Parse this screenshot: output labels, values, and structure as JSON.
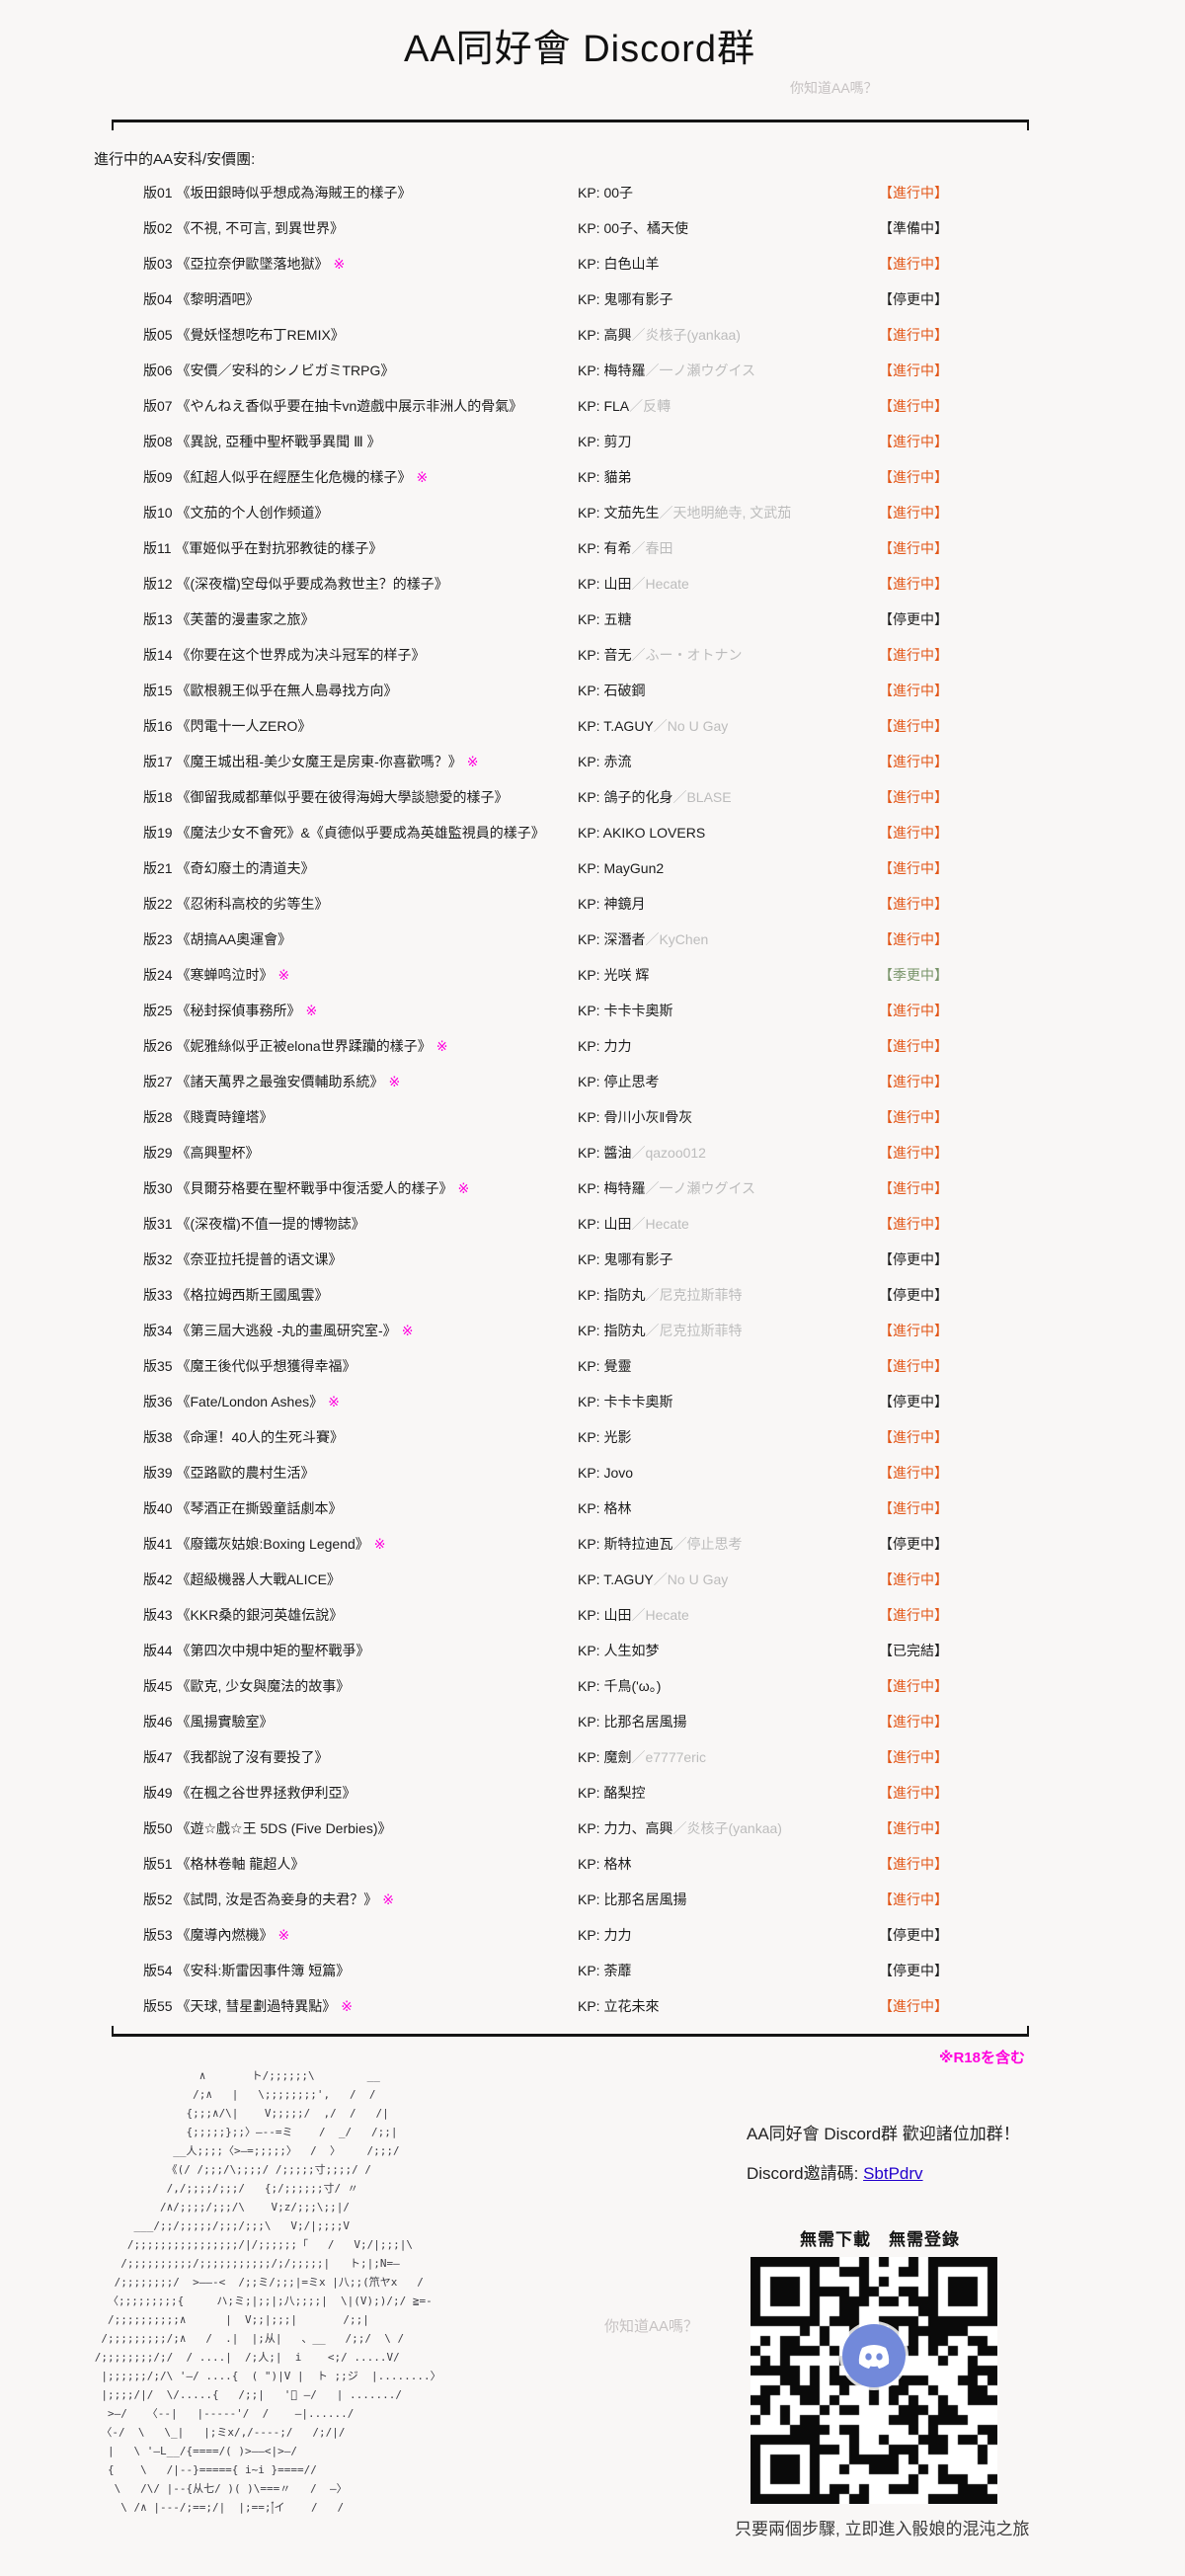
{
  "page": {
    "title": "AA同好會 Discord群",
    "subtitle": "你知道AA嗎？",
    "intro": "進行中的AA安科/安價團:",
    "kp_prefix": "KP: ",
    "r18_note": "※R18を含む"
  },
  "colors": {
    "accent_ongoing": "#e25617",
    "seasonal_green": "#79946a",
    "magenta": "#ff00dd",
    "link_blue": "#2200cc",
    "discord_blurple": "#7289da",
    "alias_gray": "#bcbcbc",
    "light_gray": "#c6c2c2"
  },
  "list": {
    "rows": [
      {
        "no": "版01",
        "title": "《坂田銀時似乎想成為海賊王的樣子》",
        "r18": false,
        "kp": "00子",
        "kp_alt": "",
        "status": "【進行中】",
        "status_type": "ongoing"
      },
      {
        "no": "版02",
        "title": "《不視, 不可言, 到異世界》",
        "r18": false,
        "kp": "00子、橘天使",
        "kp_alt": "",
        "status": "【準備中】",
        "status_type": "prep"
      },
      {
        "no": "版03",
        "title": "《亞拉奈伊歐墜落地獄》",
        "r18": true,
        "kp": "白色山羊",
        "kp_alt": "",
        "status": "【進行中】",
        "status_type": "ongoing"
      },
      {
        "no": "版04",
        "title": "《黎明酒吧》",
        "r18": false,
        "kp": "鬼哪有影子",
        "kp_alt": "",
        "status": "【停更中】",
        "status_type": "paused"
      },
      {
        "no": "版05",
        "title": "《覺妖怪想吃布丁REMIX》",
        "r18": false,
        "kp": "高興",
        "kp_alt": "／炎核子(yankaa)",
        "status": "【進行中】",
        "status_type": "ongoing"
      },
      {
        "no": "版06",
        "title": "《安價／安科的シノビガミTRPG》",
        "r18": false,
        "kp": "梅特羅",
        "kp_alt": "／一ノ瀬ウグイス",
        "status": "【進行中】",
        "status_type": "ongoing"
      },
      {
        "no": "版07",
        "title": "《やんねえ香似乎要在抽卡vn遊戲中展示非洲人的骨氣》",
        "r18": false,
        "kp": "FLA",
        "kp_alt": "／反轉",
        "status": "【進行中】",
        "status_type": "ongoing"
      },
      {
        "no": "版08",
        "title": "《異說, 亞種中聖杯戰爭異聞 Ⅲ 》",
        "r18": false,
        "kp": "剪刀",
        "kp_alt": "",
        "status": "【進行中】",
        "status_type": "ongoing"
      },
      {
        "no": "版09",
        "title": "《紅超人似乎在經歷生化危機的樣子》",
        "r18": true,
        "kp": "貓弟",
        "kp_alt": "",
        "status": "【進行中】",
        "status_type": "ongoing"
      },
      {
        "no": "版10",
        "title": "《文茄的个人创作频道》",
        "r18": false,
        "kp": "文茄先生",
        "kp_alt": "／天地明絶寺, 文武茄",
        "status": "【進行中】",
        "status_type": "ongoing"
      },
      {
        "no": "版11",
        "title": "《軍姬似乎在對抗邪教徒的樣子》",
        "r18": false,
        "kp": "有希",
        "kp_alt": "／春田",
        "status": "【進行中】",
        "status_type": "ongoing"
      },
      {
        "no": "版12",
        "title": "《(深夜檔)空母似乎要成為救世主？的樣子》",
        "r18": false,
        "kp": "山田",
        "kp_alt": "／Hecate",
        "status": "【進行中】",
        "status_type": "ongoing"
      },
      {
        "no": "版13",
        "title": "《芙蕾的漫畫家之旅》",
        "r18": false,
        "kp": "五糖",
        "kp_alt": "",
        "status": "【停更中】",
        "status_type": "paused"
      },
      {
        "no": "版14",
        "title": "《你要在这个世界成为决斗冠军的样子》",
        "r18": false,
        "kp": "音无",
        "kp_alt": "／ふー・オトナン",
        "status": "【進行中】",
        "status_type": "ongoing"
      },
      {
        "no": "版15",
        "title": "《歐根親王似乎在無人島尋找方向》",
        "r18": false,
        "kp": "石破鋼",
        "kp_alt": "",
        "status": "【進行中】",
        "status_type": "ongoing"
      },
      {
        "no": "版16",
        "title": "《閃電十一人ZERO》",
        "r18": false,
        "kp": "T.AGUY",
        "kp_alt": "／No U Gay",
        "status": "【進行中】",
        "status_type": "ongoing"
      },
      {
        "no": "版17",
        "title": "《魔王城出租-美少女魔王是房東-你喜歡嗎？》",
        "r18": true,
        "kp": "赤流",
        "kp_alt": "",
        "status": "【進行中】",
        "status_type": "ongoing"
      },
      {
        "no": "版18",
        "title": "《御留我威都華似乎要在彼得海姆大學談戀愛的樣子》",
        "r18": false,
        "kp": "鴿子的化身",
        "kp_alt": "／BLASE",
        "status": "【進行中】",
        "status_type": "ongoing"
      },
      {
        "no": "版19",
        "title": "《魔法少女不會死》&《貞德似乎要成為英雄監視員的樣子》",
        "r18": false,
        "kp": "AKIKO LOVERS",
        "kp_alt": "",
        "status": "【進行中】",
        "status_type": "ongoing"
      },
      {
        "no": "版21",
        "title": "《奇幻廢土的清道夫》",
        "r18": false,
        "kp": "MayGun2",
        "kp_alt": "",
        "status": "【進行中】",
        "status_type": "ongoing"
      },
      {
        "no": "版22",
        "title": "《忍術科高校的劣等生》",
        "r18": false,
        "kp": "神鏡月",
        "kp_alt": "",
        "status": "【進行中】",
        "status_type": "ongoing"
      },
      {
        "no": "版23",
        "title": "《胡搞AA奧運會》",
        "r18": false,
        "kp": "深潛者",
        "kp_alt": "／KyChen",
        "status": "【進行中】",
        "status_type": "ongoing"
      },
      {
        "no": "版24",
        "title": "《寒蝉鸣泣时》",
        "r18": true,
        "kp": "光咲 辉",
        "kp_alt": "",
        "status": "【季更中】",
        "status_type": "seasonal"
      },
      {
        "no": "版25",
        "title": "《秘封探偵事務所》",
        "r18": true,
        "kp": "卡卡卡奧斯",
        "kp_alt": "",
        "status": "【進行中】",
        "status_type": "ongoing"
      },
      {
        "no": "版26",
        "title": "《妮雅絲似乎正被elona世界蹂躪的樣子》",
        "r18": true,
        "kp": "力力",
        "kp_alt": "",
        "status": "【進行中】",
        "status_type": "ongoing"
      },
      {
        "no": "版27",
        "title": "《諸天萬界之最強安價輔助系統》",
        "r18": true,
        "kp": "停止思考",
        "kp_alt": "",
        "status": "【進行中】",
        "status_type": "ongoing"
      },
      {
        "no": "版28",
        "title": "《賤賣時鐘塔》",
        "r18": false,
        "kp": "骨川小灰‖骨灰",
        "kp_alt": "",
        "status": "【進行中】",
        "status_type": "ongoing"
      },
      {
        "no": "版29",
        "title": "《高興聖杯》",
        "r18": false,
        "kp": "醬油",
        "kp_alt": "／qazoo012",
        "status": "【進行中】",
        "status_type": "ongoing"
      },
      {
        "no": "版30",
        "title": "《貝爾芬格要在聖杯戰爭中復活愛人的樣子》",
        "r18": true,
        "kp": "梅特羅",
        "kp_alt": "／一ノ瀬ウグイス",
        "status": "【進行中】",
        "status_type": "ongoing"
      },
      {
        "no": "版31",
        "title": "《(深夜檔)不值一提的博物誌》",
        "r18": false,
        "kp": "山田",
        "kp_alt": "／Hecate",
        "status": "【進行中】",
        "status_type": "ongoing"
      },
      {
        "no": "版32",
        "title": "《奈亚拉托提普的语文课》",
        "r18": false,
        "kp": "鬼哪有影子",
        "kp_alt": "",
        "status": "【停更中】",
        "status_type": "paused"
      },
      {
        "no": "版33",
        "title": "《格拉姆西斯王國風雲》",
        "r18": false,
        "kp": "指防丸",
        "kp_alt": "／尼克拉斯菲特",
        "status": "【停更中】",
        "status_type": "paused"
      },
      {
        "no": "版34",
        "title": "《第三屆大逃殺 -丸的畫風研究室-》",
        "r18": true,
        "kp": "指防丸",
        "kp_alt": "／尼克拉斯菲特",
        "status": "【進行中】",
        "status_type": "ongoing"
      },
      {
        "no": "版35",
        "title": "《魔王後代似乎想獲得幸福》",
        "r18": false,
        "kp": "覺靈",
        "kp_alt": "",
        "status": "【進行中】",
        "status_type": "ongoing"
      },
      {
        "no": "版36",
        "title": "《Fate/London Ashes》",
        "r18": true,
        "kp": "卡卡卡奧斯",
        "kp_alt": "",
        "status": "【停更中】",
        "status_type": "paused"
      },
      {
        "no": "版38",
        "title": "《命運！40人的生死斗賽》",
        "r18": false,
        "kp": "光影",
        "kp_alt": "",
        "status": "【進行中】",
        "status_type": "ongoing"
      },
      {
        "no": "版39",
        "title": "《亞路歐的農村生活》",
        "r18": false,
        "kp": "Jovo",
        "kp_alt": "",
        "status": "【進行中】",
        "status_type": "ongoing"
      },
      {
        "no": "版40",
        "title": "《琴酒正在撕毀童話劇本》",
        "r18": false,
        "kp": "格林",
        "kp_alt": "",
        "status": "【進行中】",
        "status_type": "ongoing"
      },
      {
        "no": "版41",
        "title": "《廢鐵灰姑娘:Boxing Legend》",
        "r18": true,
        "kp": "斯特拉迪瓦",
        "kp_alt": "／停止思考",
        "status": "【停更中】",
        "status_type": "paused"
      },
      {
        "no": "版42",
        "title": "《超級機器人大戰ALICE》",
        "r18": false,
        "kp": "T.AGUY",
        "kp_alt": "／No U Gay",
        "status": "【進行中】",
        "status_type": "ongoing"
      },
      {
        "no": "版43",
        "title": "《KKR桑的銀河英雄伝說》",
        "r18": false,
        "kp": "山田",
        "kp_alt": "／Hecate",
        "status": "【進行中】",
        "status_type": "ongoing"
      },
      {
        "no": "版44",
        "title": "《第四次中規中矩的聖杯戰爭》",
        "r18": false,
        "kp": "人生如梦",
        "kp_alt": "",
        "status": "【已完結】",
        "status_type": "done"
      },
      {
        "no": "版45",
        "title": "《歐克, 少女與魔法的故事》",
        "r18": false,
        "kp": "千鳥('ω。)",
        "kp_alt": "",
        "status": "【進行中】",
        "status_type": "ongoing"
      },
      {
        "no": "版46",
        "title": "《風揚實驗室》",
        "r18": false,
        "kp": "比那名居風揚",
        "kp_alt": "",
        "status": "【進行中】",
        "status_type": "ongoing"
      },
      {
        "no": "版47",
        "title": "《我都說了沒有要投了》",
        "r18": false,
        "kp": "魔劍",
        "kp_alt": "／e7777eric",
        "status": "【進行中】",
        "status_type": "ongoing"
      },
      {
        "no": "版49",
        "title": "《在楓之谷世界拯救伊利亞》",
        "r18": false,
        "kp": "酪梨控",
        "kp_alt": "",
        "status": "【進行中】",
        "status_type": "ongoing"
      },
      {
        "no": "版50",
        "title": "《遊☆戲☆王 5DS (Five Derbies)》",
        "r18": false,
        "kp": "力力、高興",
        "kp_alt": "／炎核子(yankaa)",
        "status": "【進行中】",
        "status_type": "ongoing"
      },
      {
        "no": "版51",
        "title": "《格林卷軸 龍超人》",
        "r18": false,
        "kp": "格林",
        "kp_alt": "",
        "status": "【進行中】",
        "status_type": "ongoing"
      },
      {
        "no": "版52",
        "title": "《試問, 汝是否為妾身的夫君？》",
        "r18": true,
        "kp": "比那名居風揚",
        "kp_alt": "",
        "status": "【進行中】",
        "status_type": "ongoing"
      },
      {
        "no": "版53",
        "title": "《魔導內燃機》",
        "r18": true,
        "kp": "力力",
        "kp_alt": "",
        "status": "【停更中】",
        "status_type": "paused"
      },
      {
        "no": "版54",
        "title": "《安科:斯雷因事件簿 短篇》",
        "r18": false,
        "kp": "荼蘼",
        "kp_alt": "",
        "status": "【停更中】",
        "status_type": "paused"
      },
      {
        "no": "版55",
        "title": "《天球, 彗星劃過特異點》",
        "r18": true,
        "kp": "立花未來",
        "kp_alt": "",
        "status": "【進行中】",
        "status_type": "ongoing"
      }
    ]
  },
  "footer": {
    "know_aa": "你知道AA嗎？",
    "invite_heading": "AA同好會 Discord群  歡迎諸位加群！",
    "invite_label": "Discord邀請碼: ",
    "invite_code": "SbtPdrv",
    "qr_hint": "無需下載　無需登錄",
    "qr_caption": "只要兩個步驟, 立即進入骰娘的混沌之旅",
    "qr_center_icon": "discord-logo",
    "ascii_art": [
      "                      ∧       ト/;;;;;;\\        __",
      "                     /;∧   |   \\;;;;;;;;',   /  /",
      "                    {;;;∧/\\|    V;;;;;/  ,/  /   /|",
      "                    {;;;;;};;〉―--=ミ    /  _/   /;;|",
      "                  __人;;;;〈>―=;;;;;〉  /  〉    /;;;/",
      "                 《(/ /;;;/\\;;;;/ /;;;;;寸;;;;/ /",
      "                 /,/;;;;/;;;/   {;/;;;;;;寸/ 〃",
      "                /∧/;;;;/;;;/\\    V;z/;;;\\;;|/",
      "            ___/;;/;;;;;/;;;/;;;\\   V;/|;;;;V",
      "           /;;;;;;;;;;;;;;;;/|/;;;;;;「   /   V;/|;;;|\\",
      "          /;;;;;;;;;;/;;;;;;;;;;;/;/;;;;;|   ト;|;N=―",
      "         /;;;;;;;;/  >――-<  /;;ミ/;;;|=ミx |八;;(笊ヤx   /",
      "        〈;;;;;;;;;{     ハ;ミ;|;;|;八;;;;|  \\|(V);)/;/ ≧=-",
      "        /;;;;;;;;;;∧      |  V;;|;;;|       /;;|",
      "       /;;;;;;;;;/;∧   /  .|  |;从|   、__   /;;/  \\ /",
      "      /;;;;;;;;/;/  / ....|  /;人;|  i    <;/ .....V/",
      "       |;;;;;;/;/\\ '―/ ....{  ( \")|V |  ト ;;ジ  |........〉",
      "       |;;;;/|/  \\/.....{   /;;|   '゙ ―/   | ......./",
      "        >―/   〈--|   |-----'/  /    ―|....../",
      "       〈-/  \\   \\_|   |;ミx/,/----;/   /;/|/",
      "        |   \\ '―L__/{====/( )>――<|>―/",
      "        {    \\   /|--}====={ i~i }====//",
      "         \\   /\\/ |--{从七/ )( )\\===〃   /  ―〉",
      "          \\ /∧ |---/;==;/|  |;==;|゙イ    /   /"
    ]
  }
}
